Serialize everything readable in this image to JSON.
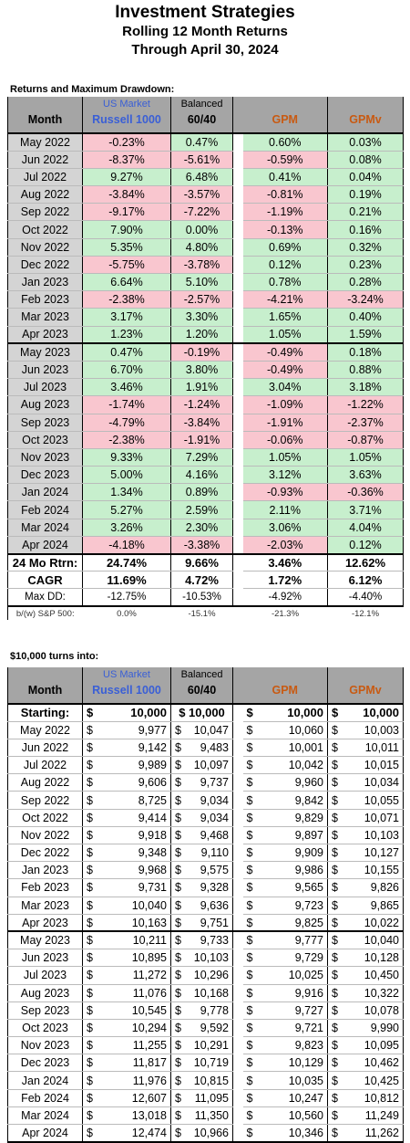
{
  "title": {
    "line1": "Investment Strategies",
    "line2": "Rolling 12 Month Returns",
    "line3": "Through April 30, 2024"
  },
  "returns_section": {
    "label": "Returns and Maximum Drawdown:",
    "header": {
      "month": "Month",
      "c1_top": "US Market",
      "c1": "Russell 1000",
      "c2_top": "Balanced",
      "c2": "60/40",
      "c3": "GPM",
      "c4": "GPMv"
    },
    "rows": [
      {
        "month": "May 2022",
        "r1000": "-0.23%",
        "bal": "0.47%",
        "gpm": "0.60%",
        "gpmv": "0.03%"
      },
      {
        "month": "Jun 2022",
        "r1000": "-8.37%",
        "bal": "-5.61%",
        "gpm": "-0.59%",
        "gpmv": "0.08%"
      },
      {
        "month": "Jul 2022",
        "r1000": "9.27%",
        "bal": "6.48%",
        "gpm": "0.41%",
        "gpmv": "0.04%"
      },
      {
        "month": "Aug 2022",
        "r1000": "-3.84%",
        "bal": "-3.57%",
        "gpm": "-0.81%",
        "gpmv": "0.19%"
      },
      {
        "month": "Sep 2022",
        "r1000": "-9.17%",
        "bal": "-7.22%",
        "gpm": "-1.19%",
        "gpmv": "0.21%"
      },
      {
        "month": "Oct 2022",
        "r1000": "7.90%",
        "bal": "0.00%",
        "gpm": "-0.13%",
        "gpmv": "0.16%"
      },
      {
        "month": "Nov 2022",
        "r1000": "5.35%",
        "bal": "4.80%",
        "gpm": "0.69%",
        "gpmv": "0.32%"
      },
      {
        "month": "Dec 2022",
        "r1000": "-5.75%",
        "bal": "-3.78%",
        "gpm": "0.12%",
        "gpmv": "0.23%"
      },
      {
        "month": "Jan 2023",
        "r1000": "6.64%",
        "bal": "5.10%",
        "gpm": "0.78%",
        "gpmv": "0.28%"
      },
      {
        "month": "Feb 2023",
        "r1000": "-2.38%",
        "bal": "-2.57%",
        "gpm": "-4.21%",
        "gpmv": "-3.24%"
      },
      {
        "month": "Mar 2023",
        "r1000": "3.17%",
        "bal": "3.30%",
        "gpm": "1.65%",
        "gpmv": "0.40%"
      },
      {
        "month": "Apr 2023",
        "r1000": "1.23%",
        "bal": "1.20%",
        "gpm": "1.05%",
        "gpmv": "1.59%"
      },
      {
        "month": "May 2023",
        "r1000": "0.47%",
        "bal": "-0.19%",
        "gpm": "-0.49%",
        "gpmv": "0.18%"
      },
      {
        "month": "Jun 2023",
        "r1000": "6.70%",
        "bal": "3.80%",
        "gpm": "-0.49%",
        "gpmv": "0.88%"
      },
      {
        "month": "Jul 2023",
        "r1000": "3.46%",
        "bal": "1.91%",
        "gpm": "3.04%",
        "gpmv": "3.18%"
      },
      {
        "month": "Aug 2023",
        "r1000": "-1.74%",
        "bal": "-1.24%",
        "gpm": "-1.09%",
        "gpmv": "-1.22%"
      },
      {
        "month": "Sep 2023",
        "r1000": "-4.79%",
        "bal": "-3.84%",
        "gpm": "-1.91%",
        "gpmv": "-2.37%"
      },
      {
        "month": "Oct 2023",
        "r1000": "-2.38%",
        "bal": "-1.91%",
        "gpm": "-0.06%",
        "gpmv": "-0.87%"
      },
      {
        "month": "Nov 2023",
        "r1000": "9.33%",
        "bal": "7.29%",
        "gpm": "1.05%",
        "gpmv": "1.05%"
      },
      {
        "month": "Dec 2023",
        "r1000": "5.00%",
        "bal": "4.16%",
        "gpm": "3.12%",
        "gpmv": "3.63%"
      },
      {
        "month": "Jan 2024",
        "r1000": "1.34%",
        "bal": "0.89%",
        "gpm": "-0.93%",
        "gpmv": "-0.36%"
      },
      {
        "month": "Feb 2024",
        "r1000": "5.27%",
        "bal": "2.59%",
        "gpm": "2.11%",
        "gpmv": "3.71%"
      },
      {
        "month": "Mar 2024",
        "r1000": "3.26%",
        "bal": "2.30%",
        "gpm": "3.06%",
        "gpmv": "4.04%"
      },
      {
        "month": "Apr 2024",
        "r1000": "-4.18%",
        "bal": "-3.38%",
        "gpm": "-2.03%",
        "gpmv": "0.12%"
      }
    ],
    "summary": [
      {
        "label": "24 Mo Rtrn:",
        "r1000": "24.74%",
        "bal": "9.66%",
        "gpm": "3.46%",
        "gpmv": "12.62%"
      },
      {
        "label": "CAGR",
        "r1000": "11.69%",
        "bal": "4.72%",
        "gpm": "1.72%",
        "gpmv": "6.12%"
      },
      {
        "label": "Max DD:",
        "r1000": "-12.75%",
        "bal": "-10.53%",
        "gpm": "-4.92%",
        "gpmv": "-4.40%"
      }
    ],
    "bw": {
      "label": "b/(w) S&P 500:",
      "r1000": "0.0%",
      "bal": "-15.1%",
      "gpm": "-21.3%",
      "gpmv": "-12.1%"
    }
  },
  "growth_section": {
    "label": "$10,000 turns into:",
    "header": {
      "month": "Month",
      "c1_top": "US Market",
      "c1": "Russell 1000",
      "c2_top": "Balanced",
      "c2": "60/40",
      "c3": "GPM",
      "c4": "GPMv"
    },
    "currency": "$",
    "starting": {
      "month": "Starting:",
      "r1000": "10,000",
      "bal": "$ 10,000",
      "gpm": "10,000",
      "gpmv": "10,000"
    },
    "rows": [
      {
        "month": "May 2022",
        "r1000": "9,977",
        "bal": "10,047",
        "gpm": "10,060",
        "gpmv": "10,003"
      },
      {
        "month": "Jun 2022",
        "r1000": "9,142",
        "bal": "9,483",
        "gpm": "10,001",
        "gpmv": "10,011"
      },
      {
        "month": "Jul 2022",
        "r1000": "9,989",
        "bal": "10,097",
        "gpm": "10,042",
        "gpmv": "10,015"
      },
      {
        "month": "Aug 2022",
        "r1000": "9,606",
        "bal": "9,737",
        "gpm": "9,960",
        "gpmv": "10,034"
      },
      {
        "month": "Sep 2022",
        "r1000": "8,725",
        "bal": "9,034",
        "gpm": "9,842",
        "gpmv": "10,055"
      },
      {
        "month": "Oct 2022",
        "r1000": "9,414",
        "bal": "9,034",
        "gpm": "9,829",
        "gpmv": "10,071"
      },
      {
        "month": "Nov 2022",
        "r1000": "9,918",
        "bal": "9,468",
        "gpm": "9,897",
        "gpmv": "10,103"
      },
      {
        "month": "Dec 2022",
        "r1000": "9,348",
        "bal": "9,110",
        "gpm": "9,909",
        "gpmv": "10,127"
      },
      {
        "month": "Jan 2023",
        "r1000": "9,968",
        "bal": "9,575",
        "gpm": "9,986",
        "gpmv": "10,155"
      },
      {
        "month": "Feb 2023",
        "r1000": "9,731",
        "bal": "9,328",
        "gpm": "9,565",
        "gpmv": "9,826"
      },
      {
        "month": "Mar 2023",
        "r1000": "10,040",
        "bal": "9,636",
        "gpm": "9,723",
        "gpmv": "9,865"
      },
      {
        "month": "Apr 2023",
        "r1000": "10,163",
        "bal": "9,751",
        "gpm": "9,825",
        "gpmv": "10,022"
      },
      {
        "month": "May 2023",
        "r1000": "10,211",
        "bal": "9,733",
        "gpm": "9,777",
        "gpmv": "10,040"
      },
      {
        "month": "Jun 2023",
        "r1000": "10,895",
        "bal": "10,103",
        "gpm": "9,729",
        "gpmv": "10,128"
      },
      {
        "month": "Jul 2023",
        "r1000": "11,272",
        "bal": "10,296",
        "gpm": "10,025",
        "gpmv": "10,450"
      },
      {
        "month": "Aug 2023",
        "r1000": "11,076",
        "bal": "10,168",
        "gpm": "9,916",
        "gpmv": "10,322"
      },
      {
        "month": "Sep 2023",
        "r1000": "10,545",
        "bal": "9,778",
        "gpm": "9,727",
        "gpmv": "10,078"
      },
      {
        "month": "Oct 2023",
        "r1000": "10,294",
        "bal": "9,592",
        "gpm": "9,721",
        "gpmv": "9,990"
      },
      {
        "month": "Nov 2023",
        "r1000": "11,255",
        "bal": "10,291",
        "gpm": "9,823",
        "gpmv": "10,095"
      },
      {
        "month": "Dec 2023",
        "r1000": "11,817",
        "bal": "10,719",
        "gpm": "10,129",
        "gpmv": "10,462"
      },
      {
        "month": "Jan 2024",
        "r1000": "11,976",
        "bal": "10,815",
        "gpm": "10,035",
        "gpmv": "10,425"
      },
      {
        "month": "Feb 2024",
        "r1000": "12,607",
        "bal": "11,095",
        "gpm": "10,247",
        "gpmv": "10,812"
      },
      {
        "month": "Mar 2024",
        "r1000": "13,018",
        "bal": "11,350",
        "gpm": "10,560",
        "gpmv": "11,249"
      },
      {
        "month": "Apr 2024",
        "r1000": "12,474",
        "bal": "10,966",
        "gpm": "10,346",
        "gpmv": "11,262"
      }
    ]
  },
  "colors": {
    "header_bg": "#a5a5a5",
    "month_bg": "#d4d4d4",
    "positive_bg": "#c7efcd",
    "negative_bg": "#f9c6cf",
    "russell_label": "#3a5fd6",
    "gpm_label": "#c85a12"
  }
}
